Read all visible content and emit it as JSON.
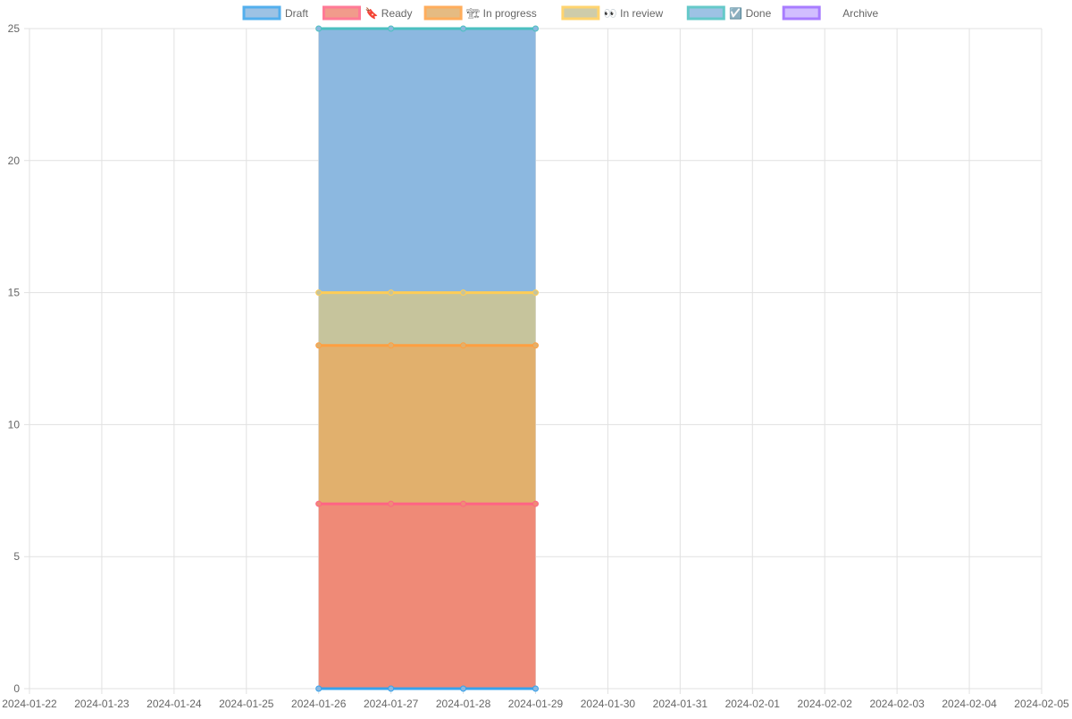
{
  "chart_data": {
    "type": "area",
    "stacked": true,
    "grid": true,
    "legend_position": "top-center",
    "x": [
      "2024-01-22",
      "2024-01-23",
      "2024-01-24",
      "2024-01-25",
      "2024-01-26",
      "2024-01-27",
      "2024-01-28",
      "2024-01-29",
      "2024-01-30",
      "2024-01-31",
      "2024-02-01",
      "2024-02-02",
      "2024-02-03",
      "2024-02-04",
      "2024-02-05"
    ],
    "ylim": [
      0,
      25
    ],
    "yticks": [
      0,
      5,
      10,
      15,
      20,
      25
    ],
    "series": [
      {
        "name": "Draft",
        "icon": "",
        "legend_color": "#36a2eb",
        "fill": "#8cb8e0",
        "points": [
          [
            "2024-01-26",
            0
          ],
          [
            "2024-01-27",
            0
          ],
          [
            "2024-01-28",
            0
          ],
          [
            "2024-01-29",
            0
          ]
        ]
      },
      {
        "name": "Ready",
        "icon": "🔖",
        "legend_color": "#ff6384",
        "fill": "#ef8a77",
        "points": [
          [
            "2024-01-26",
            7
          ],
          [
            "2024-01-27",
            7
          ],
          [
            "2024-01-28",
            7
          ],
          [
            "2024-01-29",
            7
          ]
        ]
      },
      {
        "name": "In progress",
        "icon": "🏗",
        "legend_color": "#ff9f40",
        "fill": "#e1b06d",
        "points": [
          [
            "2024-01-26",
            6
          ],
          [
            "2024-01-27",
            6
          ],
          [
            "2024-01-28",
            6
          ],
          [
            "2024-01-29",
            6
          ]
        ]
      },
      {
        "name": "In review",
        "icon": "👀",
        "legend_color": "#ffcd56",
        "fill": "#c6c49c",
        "points": [
          [
            "2024-01-26",
            2
          ],
          [
            "2024-01-27",
            2
          ],
          [
            "2024-01-28",
            2
          ],
          [
            "2024-01-29",
            2
          ]
        ]
      },
      {
        "name": "Done",
        "icon": "☑️",
        "legend_color": "#4bc0c0",
        "fill": "#8cb8e0",
        "points": [
          [
            "2024-01-26",
            10
          ],
          [
            "2024-01-27",
            10
          ],
          [
            "2024-01-28",
            10
          ],
          [
            "2024-01-29",
            10
          ]
        ]
      },
      {
        "name": "Archive",
        "icon": "",
        "legend_color": "#9966ff",
        "fill": "#c9b3ff",
        "points": []
      }
    ]
  }
}
